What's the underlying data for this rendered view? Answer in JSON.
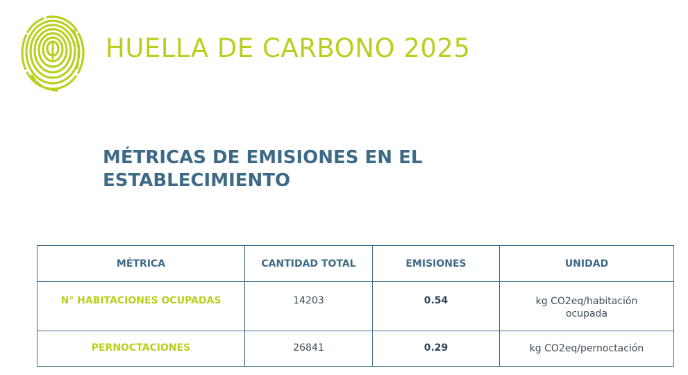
{
  "header": {
    "title": "HUELLA DE CARBONO 2025",
    "logo_icon": "fingerprint-icon",
    "accent_color": "#b9cf1e"
  },
  "section": {
    "title": "MÉTRICAS DE EMISIONES EN EL ESTABLECIMIENTO",
    "color": "#3d6b87"
  },
  "table": {
    "columns": [
      "MÉTRICA",
      "CANTIDAD TOTAL",
      "EMISIONES",
      "UNIDAD"
    ],
    "rows": [
      {
        "metric": "N° HABITACIONES OCUPADAS",
        "quantity": "14203",
        "emissions": "0.54",
        "unit": "kg CO2eq/habitación ocupada"
      },
      {
        "metric": "PERNOCTACIONES",
        "quantity": "26841",
        "emissions": "0.29",
        "unit": "kg CO2eq/pernoctación"
      }
    ]
  }
}
